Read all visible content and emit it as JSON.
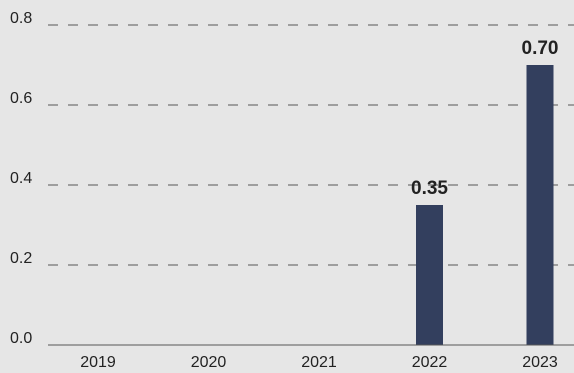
{
  "chart_data": {
    "type": "bar",
    "categories": [
      "2019",
      "2020",
      "2021",
      "2022",
      "2023"
    ],
    "values": [
      null,
      null,
      null,
      0.35,
      0.7
    ],
    "value_labels": [
      null,
      null,
      null,
      "0.35",
      "0.70"
    ],
    "color": "#333f5e",
    "ylim": [
      0,
      0.8
    ],
    "yticks": [
      {
        "value": 0,
        "label": "0.0"
      },
      0.2,
      0.4,
      0.6,
      0.8
    ],
    "grid": true
  }
}
